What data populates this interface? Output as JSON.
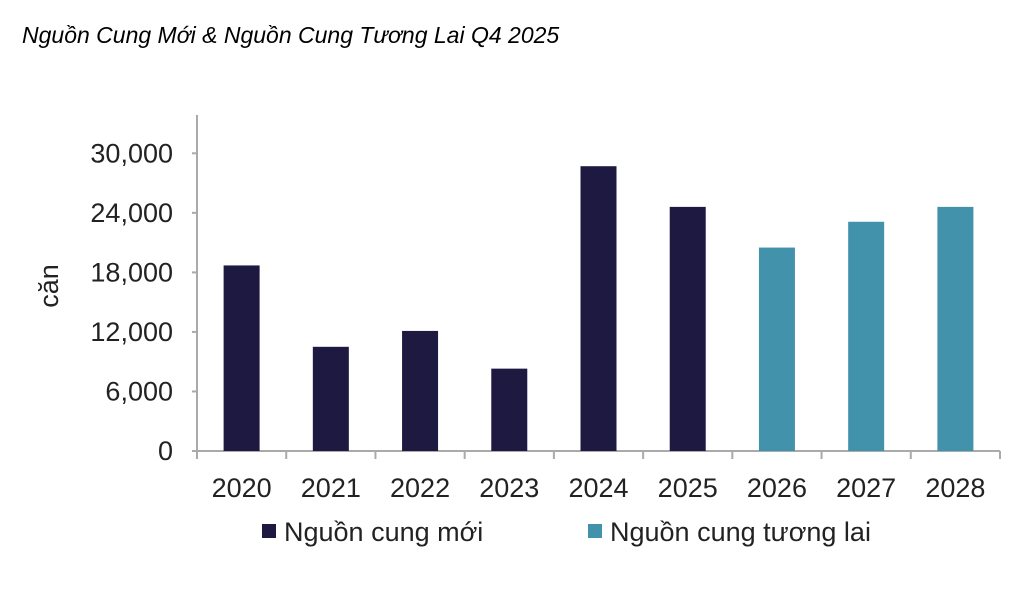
{
  "chart_data": {
    "type": "bar",
    "title": "Nguồn Cung Mới & Nguồn Cung Tương Lai Q4 2025",
    "xlabel": "",
    "ylabel": "căn",
    "ylim": [
      0,
      30000
    ],
    "yticks": [
      0,
      6000,
      12000,
      18000,
      24000,
      30000
    ],
    "ytick_labels": [
      "0",
      "6,000",
      "12,000",
      "18,000",
      "24,000",
      "30,000"
    ],
    "categories": [
      "2020",
      "2021",
      "2022",
      "2023",
      "2024",
      "2025",
      "2026",
      "2027",
      "2028"
    ],
    "series": [
      {
        "name": "Nguồn cung mới",
        "color": "#1e1940",
        "values": [
          18700,
          10500,
          12100,
          8300,
          28700,
          24600,
          null,
          null,
          null
        ]
      },
      {
        "name": "Nguồn cung tương lai",
        "color": "#4292ac",
        "values": [
          null,
          null,
          null,
          null,
          null,
          null,
          20500,
          23100,
          24600
        ]
      }
    ],
    "grid": false,
    "legend": "bottom"
  }
}
